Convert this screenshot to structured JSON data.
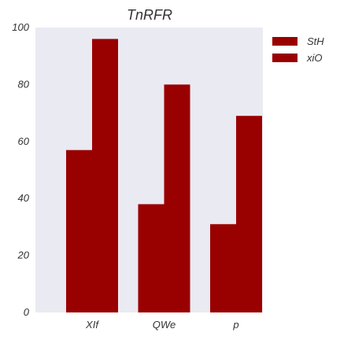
{
  "chart_data": {
    "type": "bar",
    "title": "TnRFR",
    "xlabel": "",
    "ylabel": "",
    "categories": [
      "XIf",
      "QWe",
      "p"
    ],
    "series": [
      {
        "name": "StH",
        "values": [
          57,
          38,
          31
        ],
        "color": "#990000"
      },
      {
        "name": "xiO",
        "values": [
          96,
          80,
          69
        ],
        "color": "#990000"
      }
    ],
    "ylim": [
      0,
      100
    ],
    "yticks": [
      "0",
      "20",
      "40",
      "60",
      "80",
      "100"
    ],
    "ytick_values": [
      0,
      20,
      40,
      60,
      80,
      100
    ],
    "grid": false,
    "legend_placement": "outside-top-right",
    "plot_background": "#eaeaf2"
  }
}
